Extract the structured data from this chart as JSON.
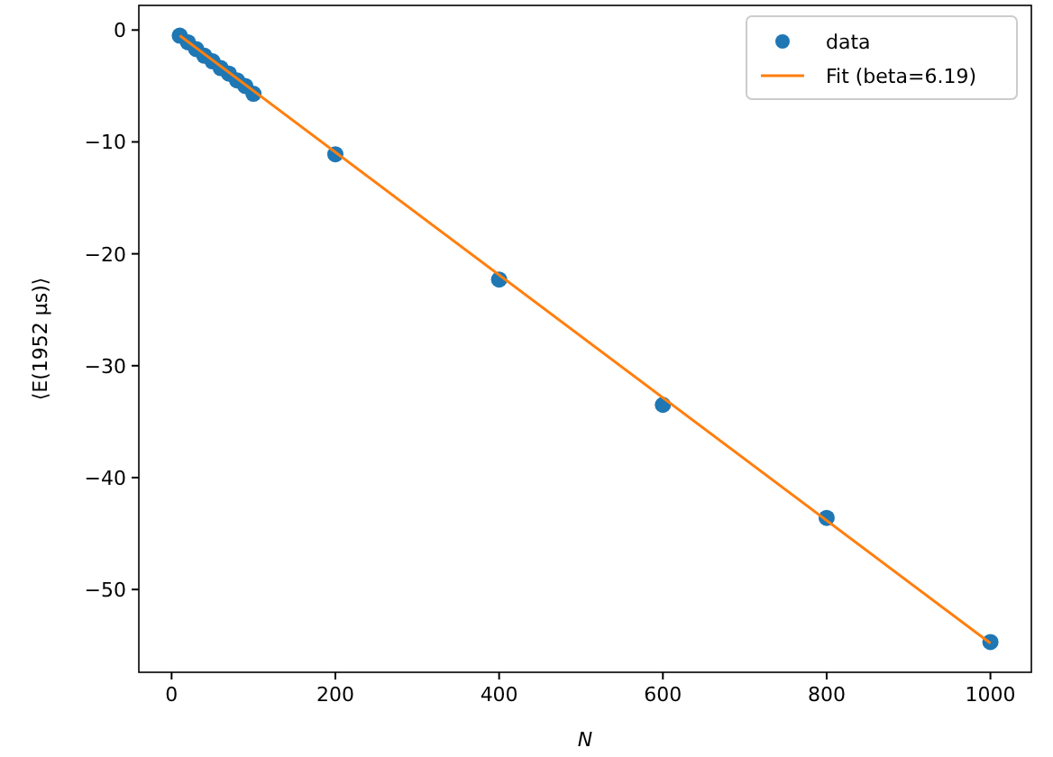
{
  "chart_data": {
    "type": "scatter",
    "xlabel": "N",
    "ylabel": "⟨E(1952 μs)⟩",
    "series": [
      {
        "name": "data",
        "color": "#1f77b4",
        "marker": "circle",
        "x": [
          10,
          20,
          30,
          40,
          50,
          60,
          70,
          80,
          90,
          100,
          200,
          400,
          600,
          800,
          1000
        ],
        "values": [
          -0.5,
          -1.1,
          -1.7,
          -2.3,
          -2.8,
          -3.4,
          -3.9,
          -4.5,
          -5.0,
          -5.7,
          -11.1,
          -22.3,
          -33.5,
          -43.6,
          -54.7
        ]
      },
      {
        "name": "Fit (beta=6.19)",
        "type": "line",
        "color": "#ff7f0e",
        "line_style": "solid",
        "x": [
          10,
          1000
        ],
        "values": [
          -0.5,
          -54.8
        ]
      }
    ],
    "xlim": [
      -40,
      1050
    ],
    "ylim": [
      -57.4,
      2.2
    ],
    "xticks": [
      0,
      200,
      400,
      600,
      800,
      1000
    ],
    "yticks": [
      0,
      {
        "value": -10,
        "label": "−10"
      },
      {
        "value": -20,
        "label": "−20"
      },
      {
        "value": -30,
        "label": "−30"
      },
      {
        "value": -40,
        "label": "−40"
      },
      {
        "value": -50,
        "label": "−50"
      }
    ],
    "grid": false,
    "legend": "top right"
  }
}
